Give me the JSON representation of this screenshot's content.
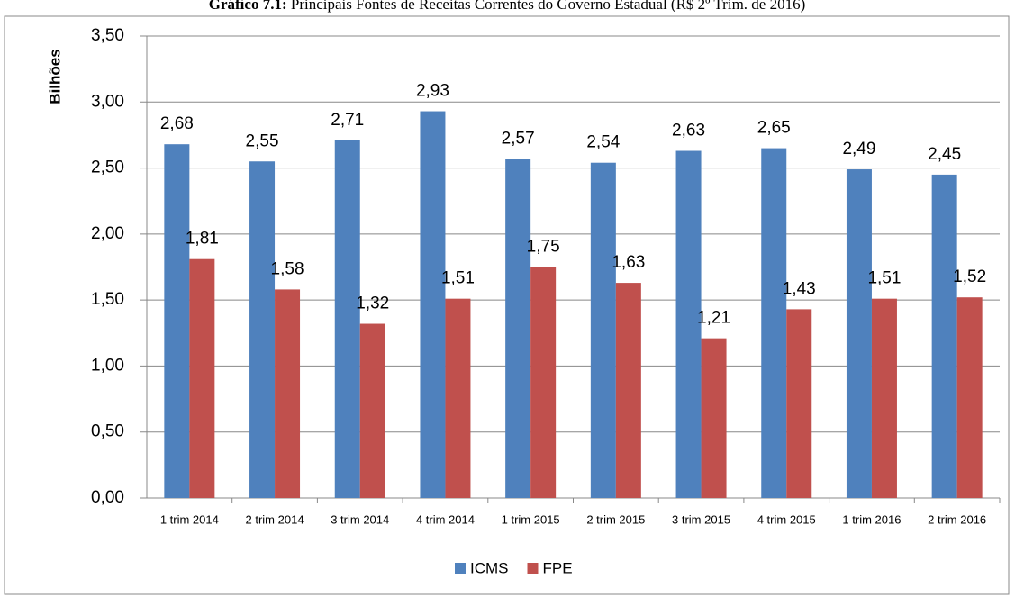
{
  "chart_data": {
    "type": "bar",
    "title_label": "Gráfico 7.1:",
    "title": "Principais Fontes de Receitas Correntes do Governo Estadual (R$ 2º Trim. de 2016)",
    "y_label": "Bilhões",
    "categories": [
      "1 trim 2014",
      "2 trim 2014",
      "3 trim 2014",
      "4 trim 2014",
      "1 trim 2015",
      "2 trim 2015",
      "3 trim 2015",
      "4 trim 2015",
      "1 trim 2016",
      "2 trim 2016"
    ],
    "series": [
      {
        "name": "ICMS",
        "color": "#4f81bd",
        "values": [
          2.68,
          2.55,
          2.71,
          2.93,
          2.57,
          2.54,
          2.63,
          2.65,
          2.49,
          2.45
        ],
        "value_labels": [
          "2,68",
          "2,55",
          "2,71",
          "2,93",
          "2,57",
          "2,54",
          "2,63",
          "2,65",
          "2,49",
          "2,45"
        ]
      },
      {
        "name": "FPE",
        "color": "#c0504d",
        "values": [
          1.81,
          1.58,
          1.32,
          1.51,
          1.75,
          1.63,
          1.21,
          1.43,
          1.51,
          1.52
        ],
        "value_labels": [
          "1,81",
          "1,58",
          "1,32",
          "1,51",
          "1,75",
          "1,63",
          "1,21",
          "1,43",
          "1,51",
          "1,52"
        ]
      }
    ],
    "ylim": [
      0,
      3.5
    ],
    "yticks": [
      {
        "value": 0,
        "label": "0,00"
      },
      {
        "value": 0.5,
        "label": "0,50"
      },
      {
        "value": 1,
        "label": "1,00"
      },
      {
        "value": 1.5,
        "label": "1,50"
      },
      {
        "value": 2,
        "label": "2,00"
      },
      {
        "value": 2.5,
        "label": "2,50"
      },
      {
        "value": 3,
        "label": "3,00"
      },
      {
        "value": 3.5,
        "label": "3,50"
      }
    ],
    "grid": true,
    "legend": "bottom"
  }
}
